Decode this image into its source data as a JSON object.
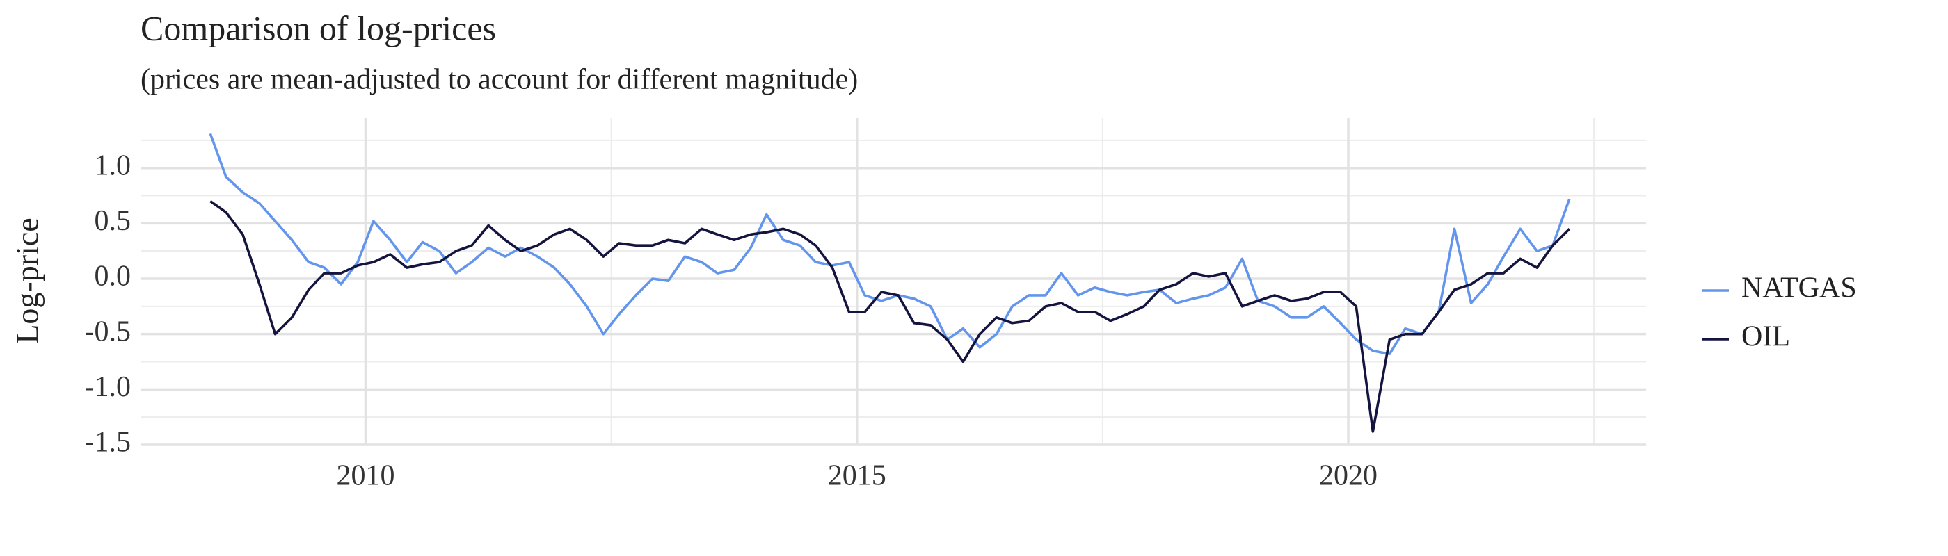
{
  "chart_data": {
    "type": "line",
    "title": "Comparison of log-prices",
    "subtitle": "(prices are mean-adjusted to account for different magnitude)",
    "y_label": "Log-price",
    "x": [
      2008.42,
      2008.58,
      2008.75,
      2008.92,
      2009.08,
      2009.25,
      2009.42,
      2009.58,
      2009.75,
      2009.92,
      2010.08,
      2010.25,
      2010.42,
      2010.58,
      2010.75,
      2010.92,
      2011.08,
      2011.25,
      2011.42,
      2011.58,
      2011.75,
      2011.92,
      2012.08,
      2012.25,
      2012.42,
      2012.58,
      2012.75,
      2012.92,
      2013.08,
      2013.25,
      2013.42,
      2013.58,
      2013.75,
      2013.92,
      2014.08,
      2014.25,
      2014.42,
      2014.58,
      2014.75,
      2014.92,
      2015.08,
      2015.25,
      2015.42,
      2015.58,
      2015.75,
      2015.92,
      2016.08,
      2016.25,
      2016.42,
      2016.58,
      2016.75,
      2016.92,
      2017.08,
      2017.25,
      2017.42,
      2017.58,
      2017.75,
      2017.92,
      2018.08,
      2018.25,
      2018.42,
      2018.58,
      2018.75,
      2018.92,
      2019.08,
      2019.25,
      2019.42,
      2019.58,
      2019.75,
      2019.92,
      2020.08,
      2020.25,
      2020.42,
      2020.58,
      2020.75,
      2020.92,
      2021.08,
      2021.25,
      2021.42,
      2021.58,
      2021.75,
      2021.92,
      2022.08,
      2022.25
    ],
    "series": [
      {
        "name": "NATGAS",
        "color": "#6495ed",
        "values": [
          1.31,
          0.92,
          0.78,
          0.68,
          0.52,
          0.35,
          0.15,
          0.1,
          -0.05,
          0.15,
          0.52,
          0.35,
          0.15,
          0.33,
          0.25,
          0.05,
          0.15,
          0.28,
          0.2,
          0.28,
          0.2,
          0.1,
          -0.05,
          -0.25,
          -0.5,
          -0.32,
          -0.15,
          0.0,
          -0.02,
          0.2,
          0.15,
          0.05,
          0.08,
          0.28,
          0.58,
          0.35,
          0.3,
          0.15,
          0.12,
          0.15,
          -0.15,
          -0.2,
          -0.15,
          -0.18,
          -0.25,
          -0.55,
          -0.45,
          -0.62,
          -0.5,
          -0.25,
          -0.15,
          -0.15,
          0.05,
          -0.15,
          -0.08,
          -0.12,
          -0.15,
          -0.12,
          -0.1,
          -0.22,
          -0.18,
          -0.15,
          -0.08,
          0.18,
          -0.2,
          -0.25,
          -0.35,
          -0.35,
          -0.25,
          -0.4,
          -0.55,
          -0.65,
          -0.68,
          -0.45,
          -0.5,
          -0.3,
          0.45,
          -0.22,
          -0.05,
          0.2,
          0.45,
          0.25,
          0.3,
          0.72
        ]
      },
      {
        "name": "OIL",
        "color": "#14143f",
        "values": [
          0.7,
          0.6,
          0.4,
          -0.05,
          -0.5,
          -0.35,
          -0.1,
          0.05,
          0.05,
          0.12,
          0.15,
          0.22,
          0.1,
          0.13,
          0.15,
          0.25,
          0.3,
          0.48,
          0.35,
          0.25,
          0.3,
          0.4,
          0.45,
          0.35,
          0.2,
          0.32,
          0.3,
          0.3,
          0.35,
          0.32,
          0.45,
          0.4,
          0.35,
          0.4,
          0.42,
          0.45,
          0.4,
          0.3,
          0.1,
          -0.3,
          -0.3,
          -0.12,
          -0.15,
          -0.4,
          -0.42,
          -0.55,
          -0.75,
          -0.5,
          -0.35,
          -0.4,
          -0.38,
          -0.25,
          -0.22,
          -0.3,
          -0.3,
          -0.38,
          -0.32,
          -0.25,
          -0.1,
          -0.05,
          0.05,
          0.02,
          0.05,
          -0.25,
          -0.2,
          -0.15,
          -0.2,
          -0.18,
          -0.12,
          -0.12,
          -0.25,
          -1.38,
          -0.55,
          -0.5,
          -0.5,
          -0.3,
          -0.1,
          -0.05,
          0.05,
          0.05,
          0.18,
          0.1,
          0.3,
          0.45
        ]
      }
    ],
    "xlim": [
      2007.71,
      2023.03
    ],
    "xticks": [
      2010,
      2015,
      2020
    ],
    "x_minor_grid": [
      2012.5,
      2017.5,
      2022.5
    ],
    "ylim": [
      -1.5,
      1.45
    ],
    "yticks": [
      {
        "value": 1.0,
        "label": "1.0"
      },
      0.5,
      {
        "value": 0.0,
        "label": "0.0"
      },
      -0.5,
      {
        "value": -1.0,
        "label": "-1.0"
      },
      -1.5
    ],
    "y_minor_grid": [
      1.25,
      0.75,
      0.25,
      -0.25,
      -0.75,
      -1.25
    ],
    "grid": true,
    "legend": "right"
  }
}
